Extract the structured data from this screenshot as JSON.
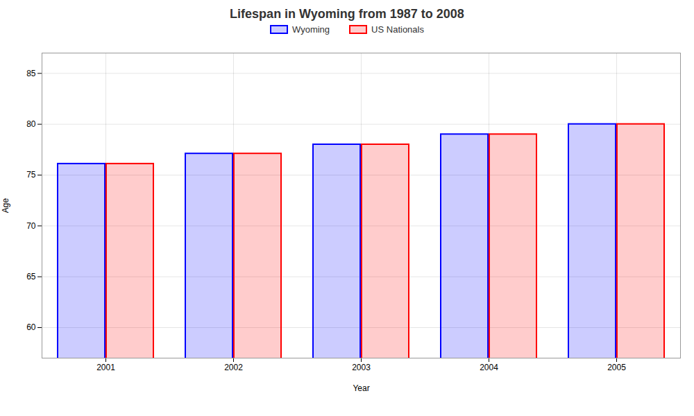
{
  "chart_data": {
    "type": "bar",
    "title": "Lifespan in Wyoming from 1987 to 2008",
    "xlabel": "Year",
    "ylabel": "Age",
    "categories": [
      "2001",
      "2002",
      "2003",
      "2004",
      "2005"
    ],
    "series": [
      {
        "name": "Wyoming",
        "color": "#0000ff",
        "values": [
          76.1,
          77.1,
          78.0,
          79.0,
          80.0
        ]
      },
      {
        "name": "US Nationals",
        "color": "#ff0000",
        "values": [
          76.1,
          77.1,
          78.0,
          79.0,
          80.0
        ]
      }
    ],
    "ylim": [
      57,
      87
    ],
    "yticks": [
      60,
      65,
      70,
      75,
      80,
      85
    ],
    "grid": true,
    "legend": "top"
  }
}
